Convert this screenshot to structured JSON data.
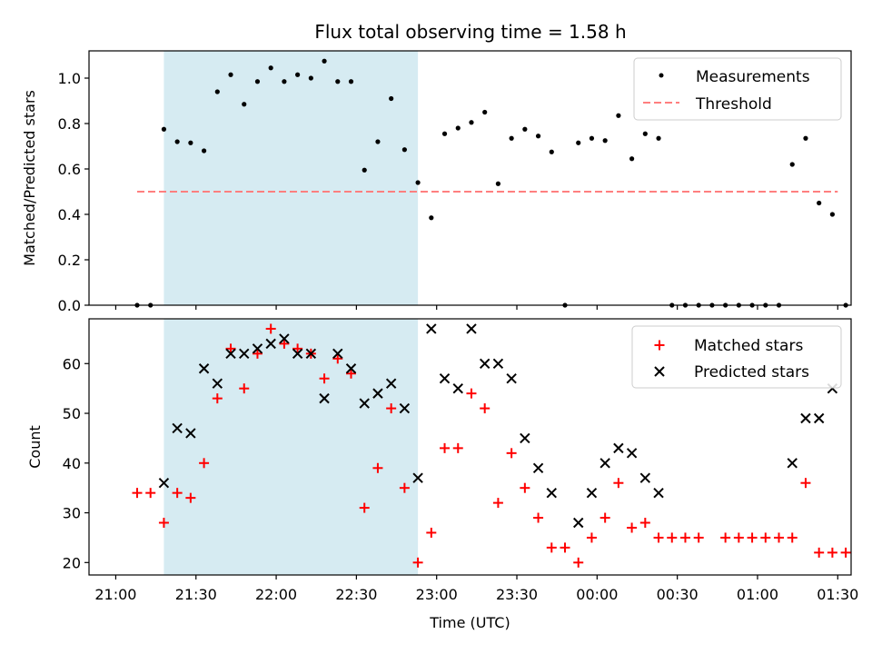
{
  "title": "Flux total observing time = 1.58 h",
  "chart_data": [
    {
      "type": "scatter",
      "ylabel": "Matched/Predicted stars",
      "ylim": [
        0,
        1.12
      ],
      "yticks": [
        "0.0",
        "0.2",
        "0.4",
        "0.6",
        "0.8",
        "1.0"
      ],
      "ytick_values": [
        0,
        0.2,
        0.4,
        0.6,
        0.8,
        1.0
      ],
      "shaded_region": {
        "x_start": "21:18",
        "x_end": "22:53",
        "color": "#add8e6"
      },
      "threshold": {
        "name": "Threshold",
        "value": 0.5,
        "x_start": "21:08",
        "x_end": "01:30",
        "color": "#ff7f7f"
      },
      "series": [
        {
          "name": "Measurements",
          "color": "#000000",
          "x": [
            "21:08",
            "21:13",
            "21:18",
            "21:23",
            "21:28",
            "21:33",
            "21:38",
            "21:43",
            "21:48",
            "21:53",
            "21:58",
            "22:03",
            "22:08",
            "22:13",
            "22:18",
            "22:23",
            "22:28",
            "22:33",
            "22:38",
            "22:43",
            "22:48",
            "22:53",
            "22:58",
            "23:03",
            "23:08",
            "23:13",
            "23:18",
            "23:23",
            "23:28",
            "23:33",
            "23:38",
            "23:43",
            "23:48",
            "23:53",
            "23:58",
            "00:03",
            "00:08",
            "00:13",
            "00:18",
            "00:23",
            "00:28",
            "00:33",
            "00:38",
            "00:43",
            "00:48",
            "00:53",
            "00:58",
            "01:03",
            "01:08",
            "01:13",
            "01:18",
            "01:23",
            "01:28",
            "01:33"
          ],
          "y": [
            0,
            0,
            0.775,
            0.72,
            0.715,
            0.68,
            0.94,
            1.015,
            0.885,
            0.985,
            1.045,
            0.985,
            1.015,
            1.0,
            1.075,
            0.985,
            0.985,
            0.595,
            0.72,
            0.91,
            0.685,
            0.54,
            0.385,
            0.755,
            0.78,
            0.805,
            0.85,
            0.535,
            0.735,
            0.775,
            0.745,
            0.675,
            0.0,
            0.715,
            0.735,
            0.725,
            0.835,
            0.645,
            0.755,
            0.735,
            0,
            0,
            0,
            0,
            0,
            0,
            0,
            0,
            0,
            0.62,
            0.735,
            0.45,
            0.4,
            0
          ]
        }
      ],
      "legend_position": "top-right"
    },
    {
      "type": "scatter",
      "xlabel": "Time (UTC)",
      "ylabel": "Count",
      "ylim": [
        17.5,
        69
      ],
      "yticks": [
        "20",
        "30",
        "40",
        "50",
        "60"
      ],
      "ytick_values": [
        20,
        30,
        40,
        50,
        60
      ],
      "xticks": [
        "21:00",
        "21:30",
        "22:00",
        "22:30",
        "23:00",
        "23:30",
        "00:00",
        "00:30",
        "01:00",
        "01:30"
      ],
      "shaded_region": {
        "x_start": "21:18",
        "x_end": "22:53",
        "color": "#add8e6"
      },
      "series": [
        {
          "name": "Matched stars",
          "marker": "plus",
          "color": "#ff0000",
          "x": [
            "21:08",
            "21:13",
            "21:18",
            "21:23",
            "21:28",
            "21:33",
            "21:38",
            "21:43",
            "21:48",
            "21:53",
            "21:58",
            "22:03",
            "22:08",
            "22:13",
            "22:18",
            "22:23",
            "22:28",
            "22:33",
            "22:38",
            "22:43",
            "22:48",
            "22:53",
            "22:58",
            "23:03",
            "23:08",
            "23:13",
            "23:18",
            "23:23",
            "23:28",
            "23:33",
            "23:38",
            "23:43",
            "23:48",
            "23:53",
            "23:58",
            "00:03",
            "00:08",
            "00:13",
            "00:18",
            "00:23",
            "00:28",
            "00:33",
            "00:38",
            "00:48",
            "00:53",
            "00:58",
            "01:03",
            "01:08",
            "01:13",
            "01:18",
            "01:23",
            "01:28",
            "01:33"
          ],
          "y": [
            34,
            34,
            28,
            34,
            33,
            40,
            53,
            63,
            55,
            62,
            67,
            64,
            63,
            62,
            57,
            61,
            58,
            31,
            39,
            51,
            35,
            20,
            26,
            43,
            43,
            54,
            51,
            32,
            42,
            35,
            29,
            23,
            23,
            20,
            25,
            29,
            36,
            27,
            28,
            25,
            25,
            25,
            25,
            25,
            25,
            25,
            25,
            25,
            25,
            36,
            22,
            22,
            22
          ]
        },
        {
          "name": "Predicted stars",
          "marker": "x",
          "color": "#000000",
          "x": [
            "21:18",
            "21:23",
            "21:28",
            "21:33",
            "21:38",
            "21:43",
            "21:48",
            "21:53",
            "21:58",
            "22:03",
            "22:08",
            "22:13",
            "22:18",
            "22:23",
            "22:28",
            "22:33",
            "22:38",
            "22:43",
            "22:48",
            "22:53",
            "22:58",
            "23:03",
            "23:08",
            "23:13",
            "23:18",
            "23:23",
            "23:28",
            "23:33",
            "23:38",
            "23:43",
            "23:53",
            "23:58",
            "00:03",
            "00:08",
            "00:13",
            "00:18",
            "00:23",
            "01:13",
            "01:18",
            "01:23",
            "01:28"
          ],
          "y": [
            36,
            47,
            46,
            59,
            56,
            62,
            62,
            63,
            64,
            65,
            62,
            62,
            53,
            62,
            59,
            52,
            54,
            56,
            51,
            37,
            67,
            57,
            55,
            67,
            60,
            60,
            57,
            45,
            39,
            34,
            28,
            34,
            40,
            43,
            42,
            37,
            34,
            40,
            49,
            49,
            55
          ]
        }
      ],
      "legend_position": "top-right"
    }
  ]
}
